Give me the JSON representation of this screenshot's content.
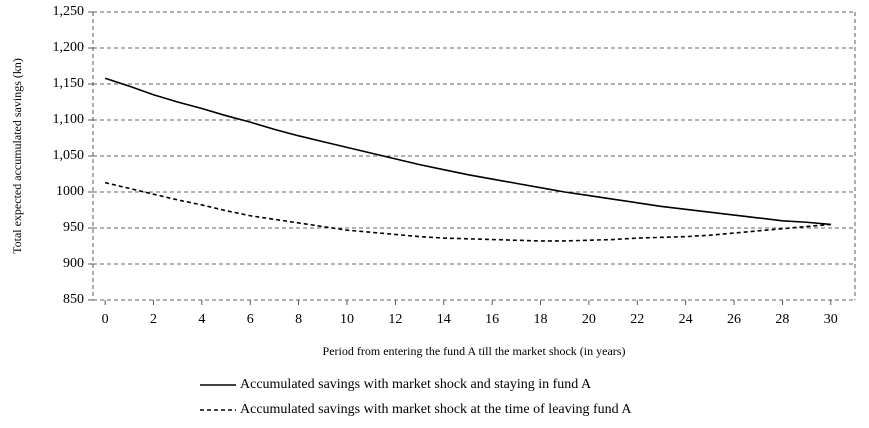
{
  "chart_data": {
    "type": "line",
    "x_label": "Period from entering the fund A till the market shock (in years)",
    "y_label": "Total expected accumulated savings (kn)",
    "x": [
      0,
      1,
      2,
      3,
      4,
      5,
      6,
      7,
      8,
      9,
      10,
      11,
      12,
      13,
      14,
      15,
      16,
      17,
      18,
      19,
      20,
      21,
      22,
      23,
      24,
      25,
      26,
      27,
      28,
      29,
      30
    ],
    "series": [
      {
        "name": "Accumulated savings with market shock and staying in fund A",
        "color": "#000000",
        "style": "solid",
        "values": [
          1158,
          1147,
          1135,
          1125,
          1116,
          1106,
          1097,
          1087,
          1078,
          1070,
          1062,
          1054,
          1046,
          1038,
          1031,
          1024,
          1018,
          1012,
          1006,
          1000,
          995,
          990,
          985,
          980,
          976,
          972,
          968,
          964,
          960,
          958,
          955
        ]
      },
      {
        "name": "Accumulated savings with market shock at the time of leaving fund A",
        "color": "#000000",
        "style": "dashed",
        "values": [
          1013,
          1005,
          997,
          989,
          982,
          974,
          967,
          962,
          957,
          952,
          947,
          944,
          941,
          938,
          936,
          935,
          934,
          933,
          932,
          932,
          933,
          934,
          936,
          937,
          938,
          940,
          943,
          946,
          949,
          952,
          955
        ]
      }
    ],
    "xlim": [
      -0.5,
      31
    ],
    "xticks": [
      0,
      2,
      4,
      6,
      8,
      10,
      12,
      14,
      16,
      18,
      20,
      22,
      24,
      26,
      28,
      30
    ],
    "ylim": [
      850,
      1250
    ],
    "yticks": [
      850,
      900,
      950,
      1000,
      {
        "value": 1050,
        "label": "1,050"
      },
      {
        "value": 1100,
        "label": "1,100"
      },
      {
        "value": 1150,
        "label": "1,150"
      },
      {
        "value": 1200,
        "label": "1,200"
      },
      {
        "value": 1250,
        "label": "1,250"
      }
    ],
    "grid": true,
    "legend": "bottom"
  }
}
